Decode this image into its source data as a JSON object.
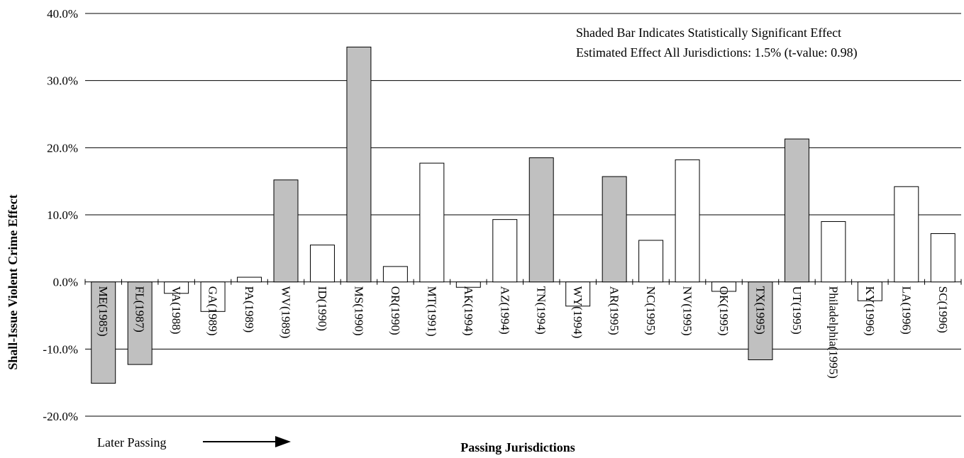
{
  "chart_data": {
    "type": "bar",
    "title": "",
    "ylabel": "Shall-Issue Violent Crime Effect",
    "xlabel": "Passing Jurisdictions",
    "ylim": [
      -0.2,
      0.4
    ],
    "yticks": [
      "40.0%",
      "30.0%",
      "20.0%",
      "10.0%",
      "0.0%",
      "-10.0%",
      "-20.0%"
    ],
    "ytick_values": [
      0.4,
      0.3,
      0.2,
      0.1,
      0.0,
      -0.1,
      -0.2
    ],
    "grid": true,
    "annotations": [
      "Shaded Bar Indicates Statistically Significant Effect",
      "Estimated Effect All Jurisdictions: 1.5% (t-value: 0.98)"
    ],
    "arrow_label": "Later Passing",
    "categories": [
      "ME(1985)",
      "FL(1987)",
      "VA(1988)",
      "GA(1989)",
      "PA(1989)",
      "WV(1989)",
      "ID(1990)",
      "MS(1990)",
      "OR(1990)",
      "MT(1991)",
      "AK(1994)",
      "AZ(1994)",
      "TN(1994)",
      "WY(1994)",
      "AR(1995)",
      "NC(1995)",
      "NV(1995)",
      "OK(1995)",
      "TX(1995)",
      "UT(1995)",
      "Philadelphia(1995)",
      "KY(1996)",
      "LA(1996)",
      "SC(1996)"
    ],
    "values": [
      -0.151,
      -0.123,
      -0.017,
      -0.044,
      0.007,
      0.152,
      0.055,
      0.35,
      0.023,
      0.177,
      -0.008,
      0.093,
      0.185,
      -0.036,
      0.157,
      0.062,
      0.182,
      -0.014,
      -0.116,
      0.213,
      0.09,
      -0.028,
      0.142,
      0.072
    ],
    "significant": [
      true,
      true,
      false,
      false,
      false,
      true,
      false,
      true,
      false,
      false,
      false,
      false,
      true,
      false,
      true,
      false,
      false,
      false,
      true,
      true,
      false,
      false,
      false,
      false
    ],
    "colors": {
      "significant": "#c0c0c0",
      "not_significant": "#ffffff",
      "stroke": "#000000"
    }
  }
}
